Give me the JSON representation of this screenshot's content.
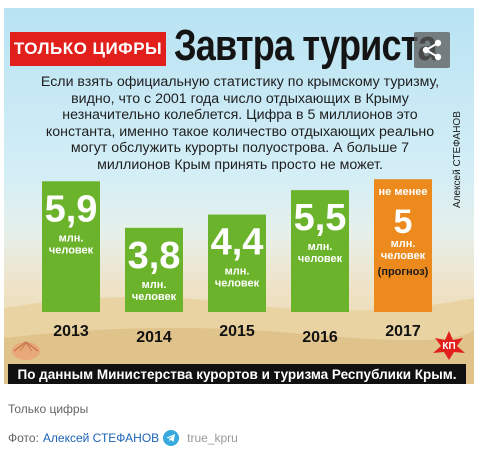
{
  "header": {
    "badge": "ТОЛЬКО ЦИФРЫ",
    "title": "Завтра туриста"
  },
  "intro": "Если взять официальную статистику по крымскому туризму, видно, что с 2001 года число отдыхающих в Крыму незначительно колеблется. Цифра в 5 миллионов это константа, именно такое количество отдыхающих реально могут обслужить курорты полуострова. А больше 7 миллионов Крым принять просто не может.",
  "credit": "Алексей СТЕФАНОВ",
  "footer": "По данным Министерства курортов и туризма Республики Крым.",
  "caption": "Только цифры",
  "photo": {
    "prefix": "Фото:",
    "author": "Алексей СТЕФАНОВ",
    "handle": "true_kpru"
  },
  "icons": [
    "share-icon",
    "telegram-icon",
    "kp-logo-icon",
    "seashell-icon"
  ],
  "colors": {
    "green": "#6cb32c",
    "orange": "#ed8a1d",
    "red": "#e1201c"
  },
  "chart_data": {
    "type": "bar",
    "categories": [
      "2013",
      "2014",
      "2015",
      "2016",
      "2017"
    ],
    "values": [
      5.9,
      3.8,
      4.4,
      5.5,
      5
    ],
    "value_labels": [
      "5,9",
      "3,8",
      "4,4",
      "5,5",
      "5"
    ],
    "unit_lines": [
      "млн.",
      "человек"
    ],
    "forecast": {
      "index": 4,
      "prefix_lines": [
        "не менее"
      ],
      "suffix": "(прогноз)",
      "color": "#ed8a1d"
    },
    "bar_color": "#6cb32c",
    "ylim": [
      0,
      6.5
    ]
  }
}
